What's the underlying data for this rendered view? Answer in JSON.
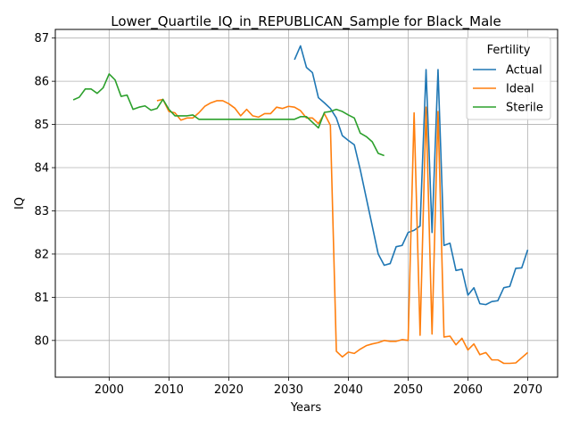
{
  "chart_data": {
    "type": "line",
    "title": "Lower_Quartile_IQ_in_REPUBLICAN_Sample for Black_Male",
    "xlabel": "Years",
    "ylabel": "IQ",
    "xlim": [
      1991,
      2075
    ],
    "ylim": [
      79.15,
      87.2
    ],
    "xticks": [
      2000,
      2010,
      2020,
      2030,
      2040,
      2050,
      2060,
      2070
    ],
    "yticks": [
      80,
      81,
      82,
      83,
      84,
      85,
      86,
      87
    ],
    "grid": true,
    "legend": {
      "title": "Fertility",
      "position": "top-right"
    },
    "series": [
      {
        "name": "Actual",
        "color": "#1f77b4",
        "x": [
          2031,
          2032,
          2033,
          2034,
          2035,
          2036,
          2037,
          2038,
          2039,
          2040,
          2041,
          2042,
          2043,
          2044,
          2045,
          2046,
          2047,
          2048,
          2049,
          2050,
          2051,
          2052,
          2053,
          2054,
          2055,
          2056,
          2057,
          2058,
          2059,
          2060,
          2061,
          2062,
          2063,
          2064,
          2065,
          2066,
          2067,
          2068,
          2069,
          2070
        ],
        "values": [
          86.5,
          86.82,
          86.32,
          86.2,
          85.62,
          85.5,
          85.37,
          85.15,
          84.74,
          84.63,
          84.53,
          83.95,
          83.3,
          82.65,
          82.0,
          81.74,
          81.78,
          82.17,
          82.2,
          82.5,
          82.55,
          82.65,
          86.27,
          82.5,
          86.27,
          82.2,
          82.25,
          81.62,
          81.65,
          81.05,
          81.22,
          80.85,
          80.83,
          80.9,
          80.92,
          81.22,
          81.25,
          81.67,
          81.68,
          82.1
        ]
      },
      {
        "name": "Ideal",
        "color": "#ff7f0e",
        "x": [
          2008,
          2009,
          2010,
          2011,
          2012,
          2013,
          2014,
          2015,
          2016,
          2017,
          2018,
          2019,
          2020,
          2021,
          2022,
          2023,
          2024,
          2025,
          2026,
          2027,
          2028,
          2029,
          2030,
          2031,
          2032,
          2033,
          2034,
          2035,
          2036,
          2037,
          2038,
          2039,
          2040,
          2041,
          2042,
          2043,
          2044,
          2045,
          2046,
          2047,
          2048,
          2049,
          2050,
          2051,
          2052,
          2053,
          2054,
          2055,
          2056,
          2057,
          2058,
          2059,
          2060,
          2061,
          2062,
          2063,
          2064,
          2065,
          2066,
          2067,
          2068,
          2069,
          2070
        ],
        "values": [
          85.55,
          85.58,
          85.3,
          85.27,
          85.1,
          85.15,
          85.15,
          85.27,
          85.42,
          85.5,
          85.55,
          85.55,
          85.48,
          85.38,
          85.2,
          85.35,
          85.2,
          85.17,
          85.25,
          85.25,
          85.4,
          85.37,
          85.42,
          85.4,
          85.32,
          85.15,
          85.15,
          85.02,
          85.25,
          84.98,
          79.75,
          79.62,
          79.73,
          79.7,
          79.8,
          79.88,
          79.92,
          79.95,
          80.0,
          79.98,
          79.98,
          80.02,
          80.0,
          85.27,
          80.12,
          85.4,
          80.15,
          85.3,
          80.08,
          80.1,
          79.9,
          80.05,
          79.78,
          79.92,
          79.67,
          79.72,
          79.55,
          79.55,
          79.47,
          79.47,
          79.48,
          79.6,
          79.72
        ]
      },
      {
        "name": "Sterile",
        "color": "#2ca02c",
        "x": [
          1994,
          1995,
          1996,
          1997,
          1998,
          1999,
          2000,
          2001,
          2002,
          2003,
          2004,
          2005,
          2006,
          2007,
          2008,
          2009,
          2010,
          2011,
          2012,
          2013,
          2014,
          2015,
          2016,
          2017,
          2018,
          2019,
          2020,
          2021,
          2022,
          2023,
          2024,
          2025,
          2026,
          2027,
          2028,
          2029,
          2030,
          2031,
          2032,
          2033,
          2034,
          2035,
          2036,
          2037,
          2038,
          2039,
          2040,
          2041,
          2042,
          2043,
          2044,
          2045,
          2046
        ],
        "values": [
          85.57,
          85.63,
          85.82,
          85.82,
          85.72,
          85.85,
          86.17,
          86.03,
          85.65,
          85.68,
          85.35,
          85.4,
          85.43,
          85.33,
          85.37,
          85.58,
          85.35,
          85.2,
          85.2,
          85.2,
          85.22,
          85.12,
          85.12,
          85.12,
          85.12,
          85.12,
          85.12,
          85.12,
          85.12,
          85.12,
          85.12,
          85.12,
          85.12,
          85.12,
          85.12,
          85.12,
          85.12,
          85.12,
          85.18,
          85.18,
          85.05,
          84.92,
          85.28,
          85.3,
          85.35,
          85.3,
          85.22,
          85.15,
          84.8,
          84.72,
          84.6,
          84.33,
          84.28
        ]
      }
    ]
  }
}
